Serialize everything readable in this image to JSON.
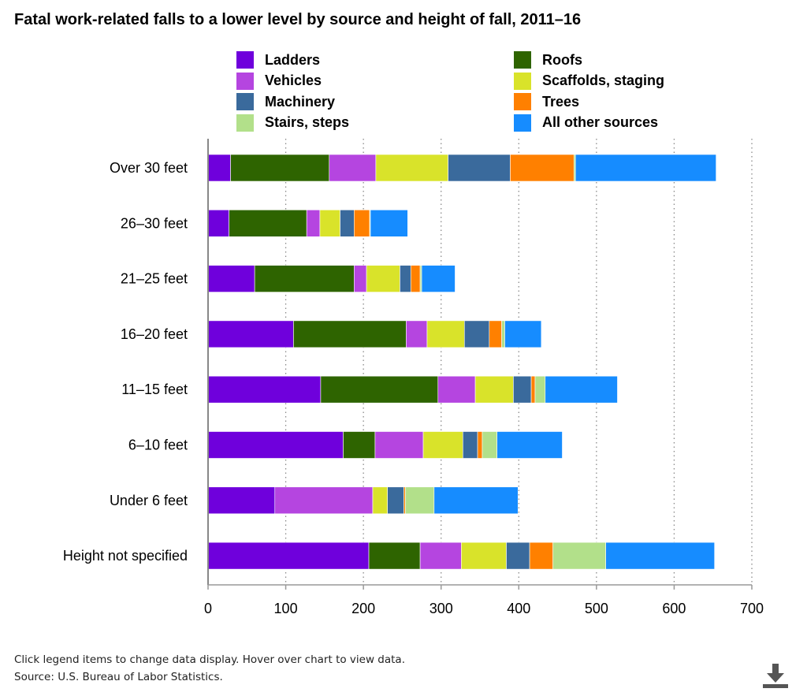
{
  "title": "Fatal work-related falls to a lower level by source and height of fall, 2011–16",
  "footer": {
    "note": "Click legend items to change data display. Hover over chart to view data.",
    "source": "Source: U.S. Bureau of Labor Statistics."
  },
  "icons": {
    "download": "download-icon"
  },
  "chart_data": {
    "type": "bar",
    "orientation": "horizontal",
    "stacked": true,
    "categories": [
      "Over 30 feet",
      "26–30 feet",
      "21–25 feet",
      "16–20 feet",
      "11–15 feet",
      "6–10 feet",
      "Under 6 feet",
      "Height not specified"
    ],
    "xlim": [
      0,
      700
    ],
    "xticks": [
      0,
      100,
      200,
      300,
      400,
      500,
      600,
      700
    ],
    "grid": "vertical dotted",
    "legend_position": "top",
    "series": [
      {
        "name": "Ladders",
        "color": "#6f00dc",
        "values": [
          29,
          27,
          60,
          110,
          145,
          174,
          86,
          207
        ]
      },
      {
        "name": "Vehicles",
        "color": "#b545e0",
        "values": [
          60,
          17,
          16,
          27,
          48,
          62,
          126,
          53
        ]
      },
      {
        "name": "Machinery",
        "color": "#3a6a9c",
        "values": [
          80,
          18,
          14,
          32,
          23,
          19,
          21,
          30
        ]
      },
      {
        "name": "Stairs, steps",
        "color": "#b2e08a",
        "values": [
          2,
          1,
          2,
          4,
          13,
          19,
          37,
          68
        ]
      },
      {
        "name": "Roofs",
        "color": "#2e6400",
        "values": [
          127,
          100,
          128,
          145,
          151,
          41,
          0,
          66
        ]
      },
      {
        "name": "Scaffolds, staging",
        "color": "#d9e32a",
        "values": [
          93,
          26,
          43,
          48,
          49,
          51,
          19,
          58
        ]
      },
      {
        "name": "Trees",
        "color": "#ff8000",
        "values": [
          82,
          20,
          12,
          16,
          5,
          6,
          2,
          30
        ]
      },
      {
        "name": "All other sources",
        "color": "#168cff",
        "values": [
          181,
          48,
          43,
          47,
          93,
          84,
          108,
          140
        ]
      }
    ],
    "stack_order": [
      "Ladders",
      "Roofs",
      "Vehicles",
      "Scaffolds, staging",
      "Machinery",
      "Trees",
      "Stairs, steps",
      "All other sources"
    ],
    "legend_order": [
      "Ladders",
      "Vehicles",
      "Machinery",
      "Stairs, steps",
      "Roofs",
      "Scaffolds, staging",
      "Trees",
      "All other sources"
    ]
  }
}
